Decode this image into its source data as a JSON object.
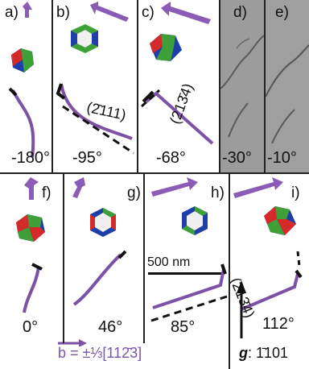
{
  "figure": {
    "panels": [
      {
        "label": "a)",
        "angle": "-180°"
      },
      {
        "label": "b)",
        "angle": "-95°",
        "direction": "(2̄111)"
      },
      {
        "label": "c)",
        "angle": "-68°",
        "direction": "(213̄4)"
      },
      {
        "label": "d)",
        "angle": "-30°"
      },
      {
        "label": "e)",
        "angle": "-10°"
      },
      {
        "label": "f)",
        "angle": "0°"
      },
      {
        "label": "g)",
        "angle": "46°"
      },
      {
        "label": "h)",
        "angle": "85°"
      },
      {
        "label": "i)",
        "angle": "112°",
        "direction": "(213̄4)"
      }
    ],
    "scale_bar": "500 nm",
    "burgers_vector": "b = ±⅓[112̄3]",
    "g_vector_symbol": "g",
    "g_vector_value": ": 1̄101",
    "colors": {
      "dislocation": "#7b52a6",
      "burgers_text": "#7a55a8",
      "crystal_red": "#d42a2a",
      "crystal_green": "#3fa03a",
      "crystal_blue": "#1f3fa8",
      "micrograph": "#9a9a9a"
    }
  }
}
